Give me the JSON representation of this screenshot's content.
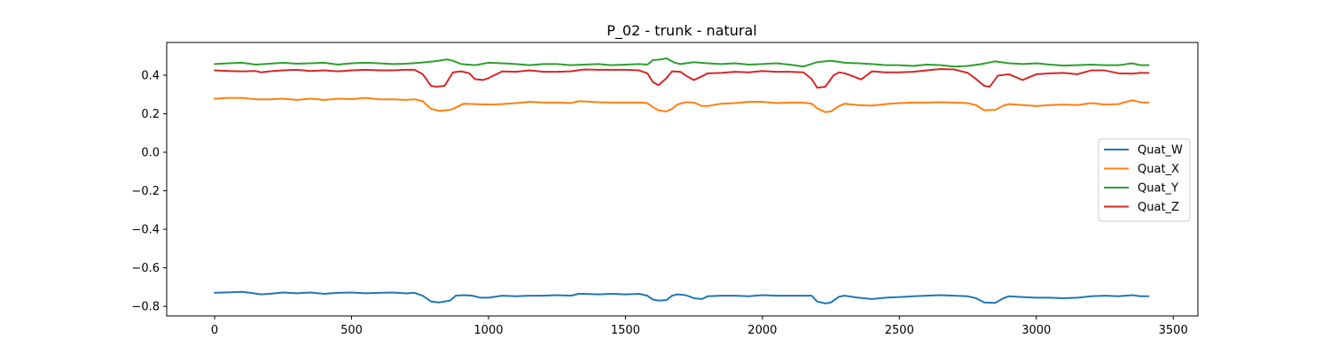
{
  "chart_data": {
    "type": "line",
    "title": "P_02 - trunk - natural",
    "xlabel": "",
    "ylabel": "",
    "xlim": [
      -175,
      3590
    ],
    "ylim": [
      -0.85,
      0.57
    ],
    "xticks": [
      0,
      500,
      1000,
      1500,
      2000,
      2500,
      3000,
      3500
    ],
    "xtick_labels": [
      "0",
      "500",
      "1000",
      "1500",
      "2000",
      "2500",
      "3000",
      "3500"
    ],
    "yticks": [
      -0.8,
      -0.6,
      -0.4,
      -0.2,
      0.0,
      0.2,
      0.4
    ],
    "ytick_labels": [
      "−0.8",
      "−0.6",
      "−0.4",
      "−0.2",
      "0.0",
      "0.2",
      "0.4"
    ],
    "grid": false,
    "legend_position": "center-right",
    "series": [
      {
        "name": "Quat_W",
        "color": "#1f77b4",
        "x": [
          0,
          100,
          130,
          170,
          200,
          250,
          300,
          350,
          400,
          450,
          500,
          550,
          600,
          650,
          700,
          730,
          760,
          790,
          820,
          860,
          880,
          910,
          940,
          970,
          1000,
          1050,
          1100,
          1150,
          1200,
          1250,
          1300,
          1330,
          1350,
          1400,
          1450,
          1500,
          1550,
          1580,
          1600,
          1620,
          1650,
          1670,
          1690,
          1720,
          1750,
          1780,
          1800,
          1850,
          1900,
          1950,
          2000,
          2050,
          2100,
          2150,
          2180,
          2200,
          2230,
          2250,
          2280,
          2300,
          2350,
          2400,
          2450,
          2500,
          2550,
          2600,
          2650,
          2700,
          2750,
          2780,
          2810,
          2850,
          2880,
          2900,
          2950,
          3000,
          3050,
          3100,
          3150,
          3200,
          3250,
          3300,
          3350,
          3380,
          3410
        ],
        "y": [
          -0.73,
          -0.725,
          -0.73,
          -0.738,
          -0.735,
          -0.728,
          -0.732,
          -0.728,
          -0.735,
          -0.73,
          -0.728,
          -0.732,
          -0.73,
          -0.728,
          -0.733,
          -0.73,
          -0.745,
          -0.775,
          -0.78,
          -0.77,
          -0.745,
          -0.742,
          -0.745,
          -0.755,
          -0.755,
          -0.745,
          -0.748,
          -0.745,
          -0.745,
          -0.742,
          -0.745,
          -0.735,
          -0.735,
          -0.738,
          -0.735,
          -0.738,
          -0.735,
          -0.745,
          -0.765,
          -0.77,
          -0.768,
          -0.745,
          -0.738,
          -0.742,
          -0.758,
          -0.762,
          -0.748,
          -0.745,
          -0.745,
          -0.748,
          -0.742,
          -0.745,
          -0.745,
          -0.745,
          -0.745,
          -0.775,
          -0.785,
          -0.78,
          -0.75,
          -0.745,
          -0.755,
          -0.762,
          -0.755,
          -0.752,
          -0.748,
          -0.745,
          -0.742,
          -0.745,
          -0.748,
          -0.758,
          -0.78,
          -0.782,
          -0.758,
          -0.748,
          -0.752,
          -0.755,
          -0.755,
          -0.758,
          -0.755,
          -0.748,
          -0.745,
          -0.748,
          -0.742,
          -0.748,
          -0.748
        ]
      },
      {
        "name": "Quat_X",
        "color": "#ff7f0e",
        "x": [
          0,
          50,
          100,
          150,
          200,
          250,
          300,
          350,
          400,
          450,
          500,
          550,
          600,
          650,
          700,
          730,
          760,
          790,
          820,
          860,
          880,
          910,
          950,
          1000,
          1050,
          1100,
          1150,
          1200,
          1250,
          1300,
          1330,
          1350,
          1400,
          1450,
          1500,
          1550,
          1580,
          1600,
          1620,
          1650,
          1670,
          1690,
          1720,
          1750,
          1780,
          1800,
          1850,
          1900,
          1950,
          2000,
          2050,
          2100,
          2150,
          2180,
          2200,
          2230,
          2250,
          2280,
          2300,
          2350,
          2400,
          2450,
          2500,
          2550,
          2600,
          2650,
          2700,
          2750,
          2780,
          2810,
          2850,
          2880,
          2900,
          2950,
          3000,
          3050,
          3100,
          3150,
          3200,
          3250,
          3300,
          3350,
          3380,
          3410
        ],
        "y": [
          0.278,
          0.282,
          0.282,
          0.275,
          0.275,
          0.278,
          0.272,
          0.278,
          0.272,
          0.278,
          0.276,
          0.282,
          0.275,
          0.275,
          0.272,
          0.275,
          0.265,
          0.225,
          0.215,
          0.22,
          0.232,
          0.252,
          0.25,
          0.248,
          0.25,
          0.255,
          0.262,
          0.258,
          0.258,
          0.255,
          0.265,
          0.264,
          0.26,
          0.258,
          0.258,
          0.258,
          0.255,
          0.235,
          0.218,
          0.212,
          0.225,
          0.248,
          0.26,
          0.258,
          0.24,
          0.24,
          0.252,
          0.255,
          0.262,
          0.262,
          0.255,
          0.258,
          0.258,
          0.252,
          0.228,
          0.208,
          0.212,
          0.24,
          0.252,
          0.245,
          0.242,
          0.25,
          0.255,
          0.258,
          0.258,
          0.26,
          0.258,
          0.255,
          0.245,
          0.218,
          0.22,
          0.242,
          0.25,
          0.245,
          0.24,
          0.245,
          0.248,
          0.245,
          0.255,
          0.248,
          0.25,
          0.27,
          0.26,
          0.258
        ]
      },
      {
        "name": "Quat_Y",
        "color": "#2ca02c",
        "x": [
          0,
          50,
          100,
          150,
          200,
          250,
          300,
          350,
          400,
          450,
          500,
          550,
          600,
          650,
          700,
          750,
          800,
          850,
          870,
          900,
          950,
          1000,
          1050,
          1100,
          1150,
          1200,
          1250,
          1300,
          1350,
          1400,
          1450,
          1500,
          1550,
          1580,
          1600,
          1630,
          1650,
          1680,
          1700,
          1750,
          1800,
          1850,
          1900,
          1950,
          2000,
          2050,
          2100,
          2150,
          2200,
          2250,
          2300,
          2350,
          2400,
          2450,
          2500,
          2550,
          2600,
          2650,
          2700,
          2750,
          2800,
          2850,
          2900,
          2950,
          3000,
          3050,
          3100,
          3150,
          3200,
          3250,
          3300,
          3350,
          3380,
          3410
        ],
        "y": [
          0.458,
          0.462,
          0.465,
          0.455,
          0.46,
          0.465,
          0.46,
          0.462,
          0.465,
          0.455,
          0.462,
          0.465,
          0.462,
          0.458,
          0.46,
          0.465,
          0.472,
          0.482,
          0.475,
          0.458,
          0.452,
          0.465,
          0.462,
          0.458,
          0.452,
          0.458,
          0.458,
          0.452,
          0.455,
          0.458,
          0.452,
          0.455,
          0.458,
          0.455,
          0.478,
          0.482,
          0.488,
          0.465,
          0.458,
          0.468,
          0.462,
          0.458,
          0.462,
          0.455,
          0.458,
          0.462,
          0.455,
          0.445,
          0.468,
          0.475,
          0.465,
          0.462,
          0.458,
          0.452,
          0.452,
          0.448,
          0.455,
          0.452,
          0.445,
          0.448,
          0.458,
          0.472,
          0.462,
          0.458,
          0.462,
          0.455,
          0.45,
          0.452,
          0.455,
          0.452,
          0.452,
          0.462,
          0.452,
          0.452
        ]
      },
      {
        "name": "Quat_Z",
        "color": "#d62728",
        "x": [
          0,
          50,
          100,
          150,
          170,
          200,
          250,
          300,
          350,
          400,
          450,
          500,
          550,
          600,
          650,
          700,
          730,
          760,
          790,
          810,
          840,
          870,
          900,
          930,
          950,
          980,
          1000,
          1050,
          1100,
          1150,
          1200,
          1250,
          1300,
          1350,
          1400,
          1450,
          1500,
          1550,
          1580,
          1600,
          1620,
          1650,
          1670,
          1700,
          1730,
          1750,
          1780,
          1800,
          1850,
          1900,
          1950,
          2000,
          2050,
          2100,
          2150,
          2180,
          2200,
          2230,
          2260,
          2280,
          2300,
          2330,
          2360,
          2400,
          2450,
          2500,
          2550,
          2600,
          2650,
          2700,
          2750,
          2780,
          2810,
          2830,
          2860,
          2900,
          2950,
          3000,
          3050,
          3100,
          3150,
          3200,
          3250,
          3300,
          3350,
          3380,
          3410
        ],
        "y": [
          0.425,
          0.422,
          0.42,
          0.422,
          0.415,
          0.42,
          0.425,
          0.428,
          0.422,
          0.425,
          0.42,
          0.425,
          0.428,
          0.425,
          0.425,
          0.428,
          0.428,
          0.405,
          0.345,
          0.34,
          0.345,
          0.415,
          0.42,
          0.41,
          0.38,
          0.375,
          0.385,
          0.42,
          0.418,
          0.425,
          0.418,
          0.418,
          0.42,
          0.43,
          0.428,
          0.428,
          0.428,
          0.425,
          0.41,
          0.365,
          0.348,
          0.385,
          0.42,
          0.418,
          0.39,
          0.375,
          0.395,
          0.41,
          0.412,
          0.418,
          0.415,
          0.422,
          0.418,
          0.418,
          0.415,
          0.38,
          0.335,
          0.34,
          0.4,
          0.415,
          0.41,
          0.395,
          0.378,
          0.42,
          0.415,
          0.415,
          0.418,
          0.425,
          0.432,
          0.43,
          0.412,
          0.38,
          0.345,
          0.34,
          0.398,
          0.405,
          0.375,
          0.405,
          0.41,
          0.412,
          0.405,
          0.425,
          0.425,
          0.41,
          0.408,
          0.412,
          0.412
        ]
      }
    ]
  }
}
